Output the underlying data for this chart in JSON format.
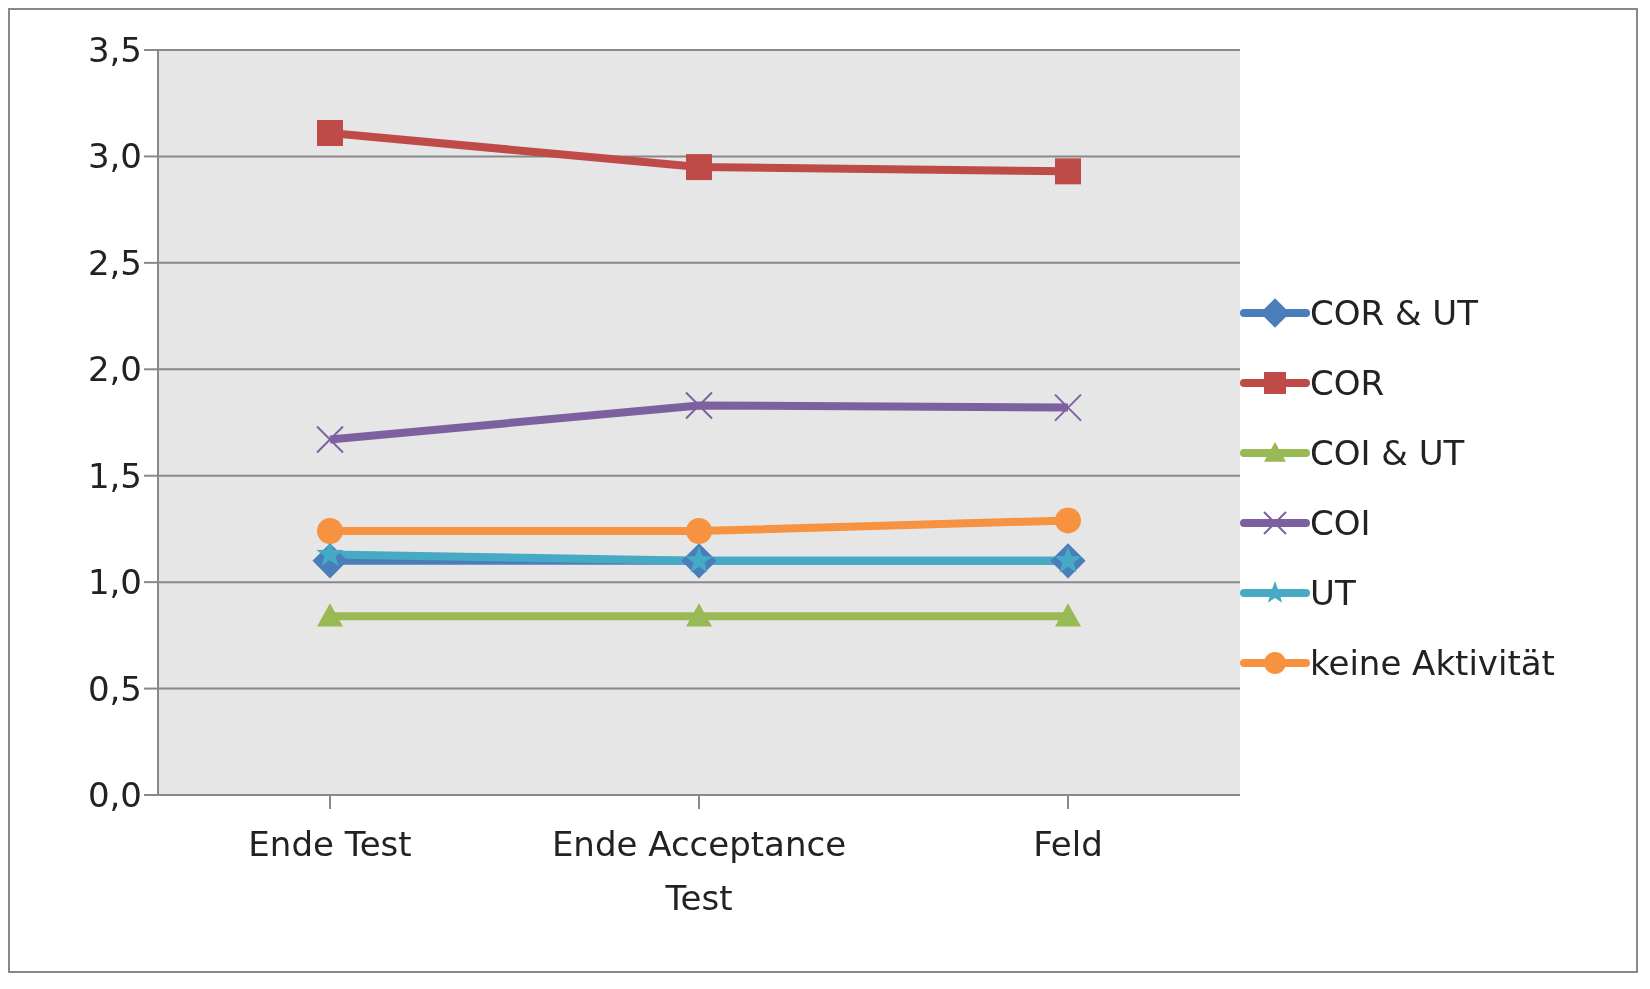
{
  "chart_data": {
    "type": "line",
    "categories": [
      "Ende Test",
      "Ende Acceptance Test",
      "Feld"
    ],
    "series": [
      {
        "name": "COR & UT",
        "color": "#4a7ebb",
        "marker": "diamond",
        "values": [
          1.1,
          1.1,
          1.1
        ]
      },
      {
        "name": "COR",
        "color": "#be4b48",
        "marker": "square",
        "values": [
          3.11,
          2.95,
          2.93
        ]
      },
      {
        "name": "COI & UT",
        "color": "#98b954",
        "marker": "triangle",
        "values": [
          0.84,
          0.84,
          0.84
        ]
      },
      {
        "name": "COI",
        "color": "#7d60a0",
        "marker": "cross",
        "values": [
          1.67,
          1.83,
          1.82
        ]
      },
      {
        "name": "UT",
        "color": "#46aac5",
        "marker": "star",
        "values": [
          1.13,
          1.1,
          1.1
        ]
      },
      {
        "name": "keine Aktivität",
        "color": "#f69240",
        "marker": "circle",
        "values": [
          1.24,
          1.24,
          1.29
        ]
      }
    ],
    "ylim": [
      0,
      3.5
    ],
    "yticks": [
      {
        "value": 0,
        "label": "0,0"
      },
      {
        "value": 0.5,
        "label": "0,5"
      },
      {
        "value": 1,
        "label": "1,0"
      },
      {
        "value": 1.5,
        "label": "1,5"
      },
      {
        "value": 2,
        "label": "2,0"
      },
      {
        "value": 2.5,
        "label": "2,5"
      },
      {
        "value": 3,
        "label": "3,0"
      },
      {
        "value": 3.5,
        "label": "3,5"
      }
    ],
    "grid": "y",
    "legend": "right",
    "line_style": "solid"
  }
}
